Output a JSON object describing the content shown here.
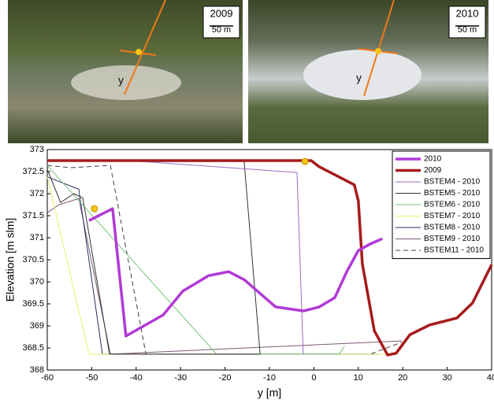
{
  "photos": [
    {
      "year": "2009",
      "scale": "50 m",
      "axis_label": "y"
    },
    {
      "year": "2010",
      "scale": "50 m",
      "axis_label": "y"
    }
  ],
  "chart_data": {
    "type": "line",
    "x_label": "y [m]",
    "y_label": "Elevation [m slm]",
    "xlim": [
      -60,
      40
    ],
    "xticks": [
      -60,
      -50,
      -40,
      -30,
      -20,
      -10,
      0,
      10,
      20,
      30,
      40
    ],
    "ylim": [
      368,
      373
    ],
    "yticks": [
      368,
      368.5,
      369,
      369.5,
      370,
      370.5,
      371,
      371.5,
      372,
      372.5,
      373
    ],
    "grid": false,
    "legend": "top-right",
    "series": [
      {
        "name": "2010",
        "color": "#b23ad6",
        "width": 3.5,
        "dashed": false,
        "x": [
          -50.6,
          -45.3,
          -42.3,
          -33.9,
          -29.5,
          -23.7,
          -19.2,
          -15.7,
          -8.6,
          -2.3,
          1.2,
          4.7,
          7.4,
          10.0,
          12.7,
          15.4
        ],
        "values": [
          371.39,
          371.66,
          368.77,
          369.25,
          369.79,
          370.14,
          370.23,
          370.05,
          369.43,
          369.34,
          369.43,
          369.64,
          370.23,
          370.71,
          370.86,
          370.98
        ]
      },
      {
        "name": "2009",
        "color": "#a61b1b",
        "width": 3.5,
        "dashed": false,
        "x": [
          -60,
          -0.6,
          1.2,
          4.7,
          9.1,
          10.0,
          10.9,
          13.6,
          16.6,
          18.5,
          21.6,
          26.0,
          32.2,
          35.7,
          40
        ],
        "values": [
          372.75,
          372.75,
          372.61,
          372.43,
          372.2,
          371.84,
          370.41,
          368.89,
          368.34,
          368.38,
          368.8,
          369.02,
          369.18,
          369.52,
          370.39
        ]
      },
      {
        "name": "BSTEM4 - 2010",
        "color": "#9c6cc0",
        "width": 1,
        "dashed": false,
        "x": [
          -38.7,
          -3.8,
          -2.4
        ],
        "values": [
          372.73,
          372.48,
          368.36
        ]
      },
      {
        "name": "BSTEM5 - 2010",
        "color": "#333333",
        "width": 1,
        "dashed": false,
        "x": [
          -60,
          -57,
          -54,
          -52,
          -46,
          -12.1,
          -15.7,
          -39
        ],
        "values": [
          372.55,
          371.8,
          372.0,
          371.9,
          368.36,
          368.36,
          372.73,
          372.73
        ]
      },
      {
        "name": "BSTEM6 - 2010",
        "color": "#78c278",
        "width": 1,
        "dashed": false,
        "x": [
          -60,
          -21.9,
          5.7,
          6.9
        ],
        "values": [
          372.64,
          368.36,
          368.36,
          368.54
        ]
      },
      {
        "name": "BSTEM7 - 2010",
        "color": "#eeee70",
        "width": 1,
        "dashed": false,
        "x": [
          -60,
          -50.6,
          18.9
        ],
        "values": [
          372.38,
          368.36,
          368.36
        ]
      },
      {
        "name": "BSTEM8 - 2010",
        "color": "#2c2c60",
        "width": 1,
        "dashed": false,
        "x": [
          -60,
          -52.9,
          -47.6,
          14.5
        ],
        "values": [
          372.38,
          372.1,
          368.36,
          368.36
        ]
      },
      {
        "name": "BSTEM9 - 2010",
        "color": "#7a5a7a",
        "width": 1,
        "dashed": false,
        "x": [
          -60,
          -57.3,
          -52.9,
          -45.8,
          19.8
        ],
        "values": [
          371.57,
          371.75,
          371.89,
          368.36,
          368.66
        ]
      },
      {
        "name": "BSTEM11 - 2010",
        "color": "#404040",
        "width": 1,
        "dashed": true,
        "x": [
          -60,
          -54.7,
          -45.8,
          -37.8,
          12.7,
          19.8
        ],
        "values": [
          372.64,
          372.59,
          372.64,
          368.36,
          368.36,
          368.63
        ]
      }
    ],
    "markers": {
      "color": "#f5c518",
      "x": [
        -49.4,
        -2.0
      ],
      "values": [
        371.66,
        372.73
      ]
    }
  }
}
